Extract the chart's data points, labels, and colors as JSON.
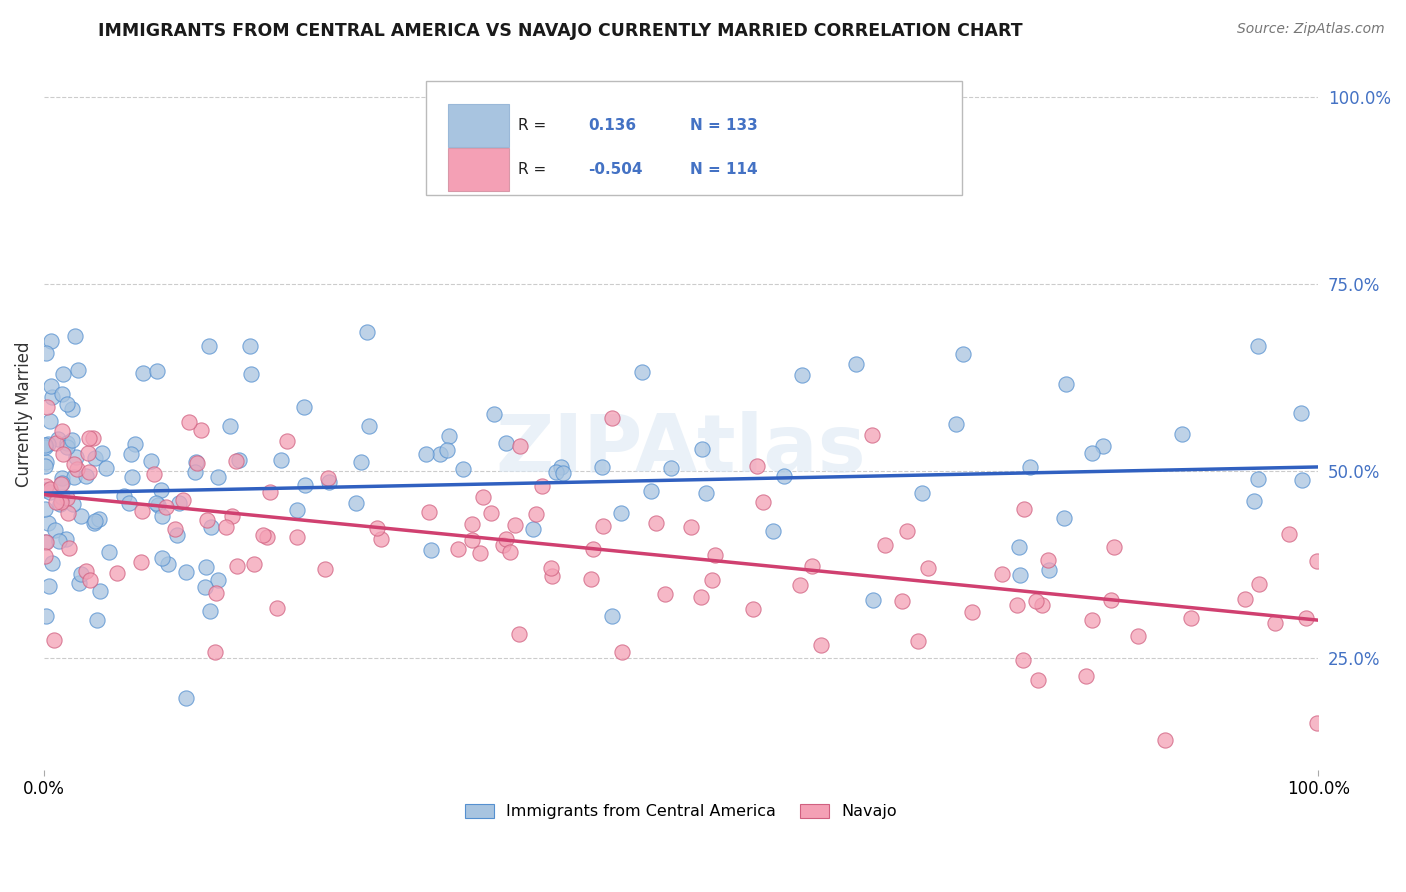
{
  "title": "IMMIGRANTS FROM CENTRAL AMERICA VS NAVAJO CURRENTLY MARRIED CORRELATION CHART",
  "source_text": "Source: ZipAtlas.com",
  "ylabel": "Currently Married",
  "xlim": [
    0.0,
    1.0
  ],
  "ylim": [
    0.1,
    1.05
  ],
  "blue_R": 0.136,
  "blue_N": 133,
  "pink_R": -0.504,
  "pink_N": 114,
  "blue_color": "#a8c4e0",
  "pink_color": "#f4a0b5",
  "blue_line_color": "#3060c0",
  "pink_line_color": "#d04070",
  "legend_label_blue": "Immigrants from Central America",
  "legend_label_pink": "Navajo",
  "background_color": "#ffffff",
  "grid_color": "#cccccc",
  "title_color": "#1a1a1a",
  "watermark": "ZIPAtlas",
  "blue_trend_y0": 0.47,
  "blue_trend_y1": 0.505,
  "pink_trend_y0": 0.468,
  "pink_trend_y1": 0.3,
  "blue_seed": 42,
  "pink_seed": 17,
  "ytick_color": "#4472c4"
}
